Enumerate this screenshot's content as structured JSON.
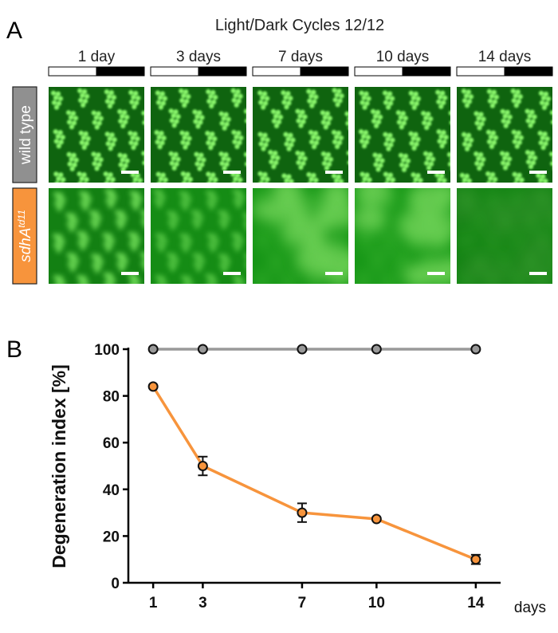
{
  "panel_a": {
    "letter": "A",
    "title": "Light/Dark Cycles 12/12",
    "days": [
      "1 day",
      "3 days",
      "7 days",
      "10 days",
      "14 days"
    ],
    "rows": [
      {
        "label": "wild type",
        "label_sup": "",
        "color": "#909090",
        "degeneration": [
          0,
          0,
          0,
          0,
          0
        ]
      },
      {
        "label": "sdhA",
        "label_sup": "td11",
        "color": "#f7943c",
        "degeneration": [
          0.2,
          0.5,
          0.72,
          0.78,
          0.92
        ]
      }
    ],
    "fluorescence_color": "#2fa62a",
    "scale_bar_color": "#ffffff"
  },
  "panel_b": {
    "letter": "B"
  },
  "chart_data": {
    "type": "line",
    "x": [
      1,
      3,
      7,
      10,
      14
    ],
    "series": [
      {
        "values": [
          100,
          100,
          100,
          100,
          100
        ],
        "errors": [
          0,
          0,
          0,
          0,
          0
        ],
        "color": "#999999"
      },
      {
        "values": [
          84,
          50,
          30,
          27.3,
          10
        ],
        "errors": [
          0,
          4,
          4,
          0,
          2
        ],
        "color": "#f7943c"
      }
    ],
    "xlabel": "days",
    "ylabel": "Degeneration index [%]",
    "xticks": [
      "1",
      "3",
      "7",
      "10",
      "14"
    ],
    "yticks": [
      "0",
      "20",
      "40",
      "60",
      "80",
      "100"
    ],
    "xlim": [
      0,
      15
    ],
    "ylim": [
      0,
      100
    ],
    "grid": false,
    "legend": "none"
  }
}
